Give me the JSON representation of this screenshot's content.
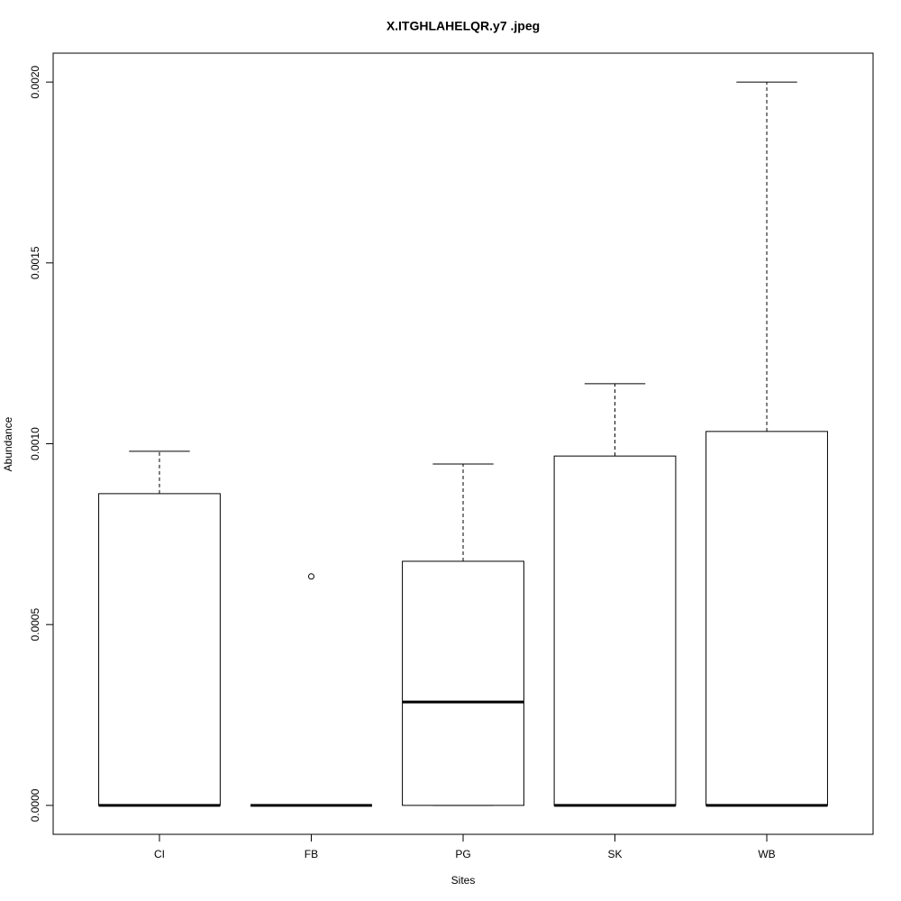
{
  "chart_data": {
    "type": "boxplot",
    "title": "X.ITGHLAHELQR.y7 .jpeg",
    "x_label": "Sites",
    "y_label": "Abundance",
    "categories": [
      "CI",
      "FB",
      "PG",
      "SK",
      "WB"
    ],
    "boxes": [
      {
        "min": 0,
        "q1": 0,
        "median": 0,
        "q3": 0.000862,
        "max": 0.000979,
        "outliers": []
      },
      {
        "min": 0,
        "q1": 0,
        "median": 0,
        "q3": 0,
        "max": 0,
        "outliers": [
          0.000633
        ]
      },
      {
        "min": 0,
        "q1": 0,
        "median": 0.000286,
        "q3": 0.000675,
        "max": 0.000944,
        "outliers": []
      },
      {
        "min": 0,
        "q1": 0,
        "median": 0,
        "q3": 0.000966,
        "max": 0.001166,
        "outliers": []
      },
      {
        "min": 0,
        "q1": 0,
        "median": 0,
        "q3": 0.001034,
        "max": 0.002,
        "outliers": []
      }
    ],
    "ylim": [
      -8e-05,
      0.00208
    ],
    "yticks": [
      {
        "value": 0,
        "label": "0.0000"
      },
      {
        "value": 0.0005,
        "label": "0.0005"
      },
      {
        "value": 0.001,
        "label": "0.0010"
      },
      {
        "value": 0.0015,
        "label": "0.0015"
      },
      {
        "value": 0.002,
        "label": "0.0020"
      }
    ],
    "color": "#ffffff"
  }
}
